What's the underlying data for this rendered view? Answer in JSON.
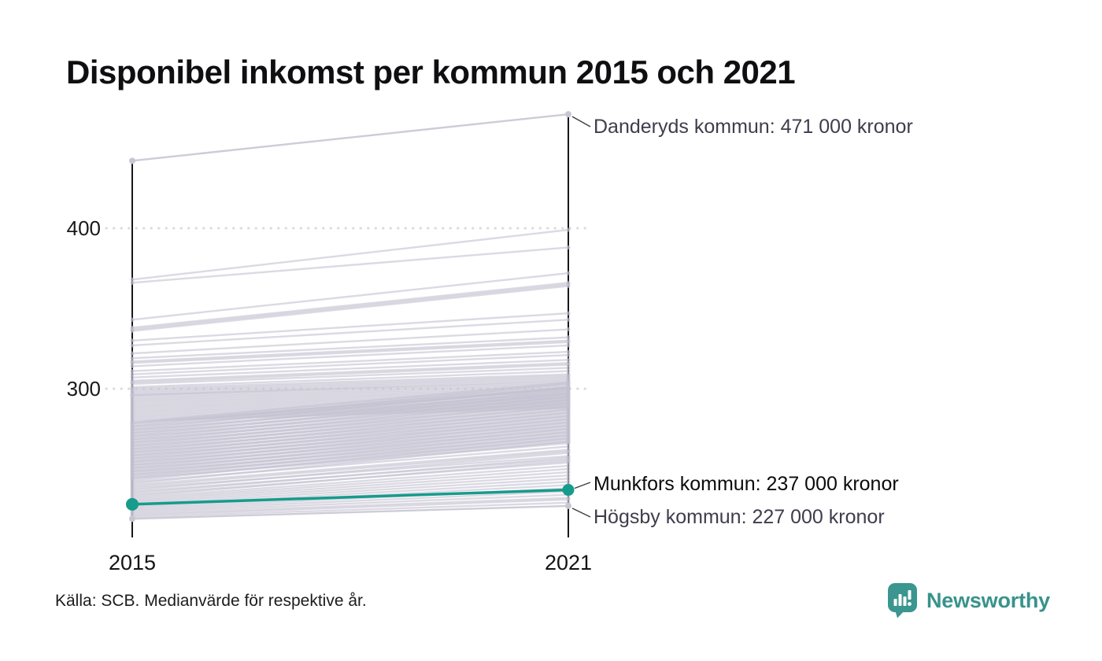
{
  "title": "Disponibel inkomst per kommun 2015 och 2021",
  "source": "Källa: SCB. Medianvärde för respektive år.",
  "logo": {
    "brand": "Newsworthy",
    "icon": "bar-chart-speech-bubble-icon"
  },
  "colors": {
    "accent_teal": "#169b8c",
    "line_gray": "#c3c1d0",
    "labeled_line_gray": "#c8c6d3",
    "axis_black": "#17171a",
    "gridline_gray": "#dcdcdc",
    "leader_gray": "#3c3c46",
    "annotation_gray": "#3f3d4c",
    "annotation_black": "#0b0b0e",
    "logo_teal": "#3a968e"
  },
  "chart_data": {
    "type": "line",
    "subtype": "slope",
    "unit": "tusen kronor (1000 kronor)",
    "x_categories": [
      "2015",
      "2021"
    ],
    "y_ticks": [
      {
        "label": "400",
        "value": 400
      },
      {
        "label": "300",
        "value": 300
      }
    ],
    "grid": "dotted horizontal",
    "legend": "none",
    "series": {
      "danderyd": {
        "name": "Danderyds kommun",
        "values": [
          442,
          471
        ],
        "label": "Danderyds kommun: 471 000 kronor",
        "highlight": false
      },
      "munkfors": {
        "name": "Munkfors kommun",
        "values": [
          228,
          237
        ],
        "label": "Munkfors kommun: 237 000 kronor",
        "highlight": true
      },
      "hogsby": {
        "name": "Högsby kommun",
        "values": [
          219,
          227
        ],
        "label": "Högsby kommun: 227 000 kronor",
        "highlight": false
      }
    },
    "background_lines": [
      [
        368,
        399
      ],
      [
        366,
        388
      ],
      [
        343,
        372
      ],
      [
        338,
        366
      ],
      [
        337,
        365
      ],
      [
        336,
        364
      ],
      [
        330,
        347
      ],
      [
        327,
        343
      ],
      [
        322,
        337
      ],
      [
        319,
        332
      ],
      [
        317,
        330
      ],
      [
        316,
        329
      ],
      [
        314,
        327
      ],
      [
        311,
        323
      ],
      [
        309,
        321
      ],
      [
        307,
        318
      ],
      [
        305,
        316
      ],
      [
        304,
        315
      ],
      [
        303,
        313
      ],
      [
        301,
        311
      ],
      [
        300,
        309
      ],
      [
        299,
        308
      ],
      [
        298,
        307
      ],
      [
        297,
        306
      ],
      [
        296,
        305
      ],
      [
        296,
        304
      ],
      [
        295,
        303
      ],
      [
        294,
        302
      ],
      [
        293,
        301
      ],
      [
        292,
        300
      ],
      [
        291,
        299
      ],
      [
        290,
        298
      ],
      [
        289,
        297
      ],
      [
        288,
        296
      ],
      [
        287,
        295
      ],
      [
        286,
        294
      ],
      [
        285,
        293
      ],
      [
        284,
        292
      ],
      [
        283,
        291
      ],
      [
        282,
        290
      ],
      [
        281,
        289
      ],
      [
        280,
        288
      ],
      [
        279,
        304
      ],
      [
        278,
        300
      ],
      [
        277,
        303
      ],
      [
        276,
        298
      ],
      [
        275,
        301
      ],
      [
        274,
        296
      ],
      [
        273,
        299
      ],
      [
        272,
        294
      ],
      [
        271,
        297
      ],
      [
        270,
        292
      ],
      [
        269,
        295
      ],
      [
        268,
        290
      ],
      [
        267,
        293
      ],
      [
        266,
        288
      ],
      [
        265,
        291
      ],
      [
        264,
        286
      ],
      [
        263,
        289
      ],
      [
        262,
        284
      ],
      [
        261,
        287
      ],
      [
        260,
        282
      ],
      [
        259,
        285
      ],
      [
        258,
        280
      ],
      [
        257,
        283
      ],
      [
        256,
        278
      ],
      [
        255,
        281
      ],
      [
        254,
        276
      ],
      [
        253,
        279
      ],
      [
        252,
        274
      ],
      [
        251,
        277
      ],
      [
        250,
        272
      ],
      [
        249,
        275
      ],
      [
        248,
        270
      ],
      [
        247,
        273
      ],
      [
        246,
        268
      ],
      [
        245,
        271
      ],
      [
        244,
        266
      ],
      [
        243,
        269
      ],
      [
        242,
        264
      ],
      [
        241,
        267
      ],
      [
        240,
        262
      ],
      [
        239,
        261
      ],
      [
        238,
        258
      ],
      [
        237,
        260
      ],
      [
        236,
        256
      ],
      [
        235,
        257
      ],
      [
        234,
        254
      ],
      [
        233,
        255
      ],
      [
        232,
        252
      ],
      [
        231,
        250
      ],
      [
        230,
        248
      ],
      [
        229,
        246
      ],
      [
        228,
        244
      ],
      [
        227,
        242
      ],
      [
        226,
        240
      ],
      [
        225,
        238
      ],
      [
        224,
        236
      ],
      [
        223,
        234
      ],
      [
        222,
        232
      ],
      [
        221,
        231
      ],
      [
        220,
        229
      ],
      [
        278.5,
        301
      ],
      [
        276.5,
        300
      ],
      [
        274.5,
        297
      ],
      [
        272.5,
        295
      ],
      [
        270.5,
        293
      ],
      [
        268.5,
        291
      ],
      [
        266.5,
        289
      ],
      [
        264.5,
        287
      ],
      [
        262.5,
        285
      ],
      [
        260.5,
        283
      ],
      [
        258.5,
        281
      ],
      [
        256.5,
        279
      ],
      [
        254.5,
        277
      ],
      [
        252.5,
        275
      ],
      [
        250.5,
        273
      ],
      [
        248.5,
        271
      ],
      [
        246.5,
        269
      ],
      [
        244.5,
        267
      ]
    ]
  }
}
